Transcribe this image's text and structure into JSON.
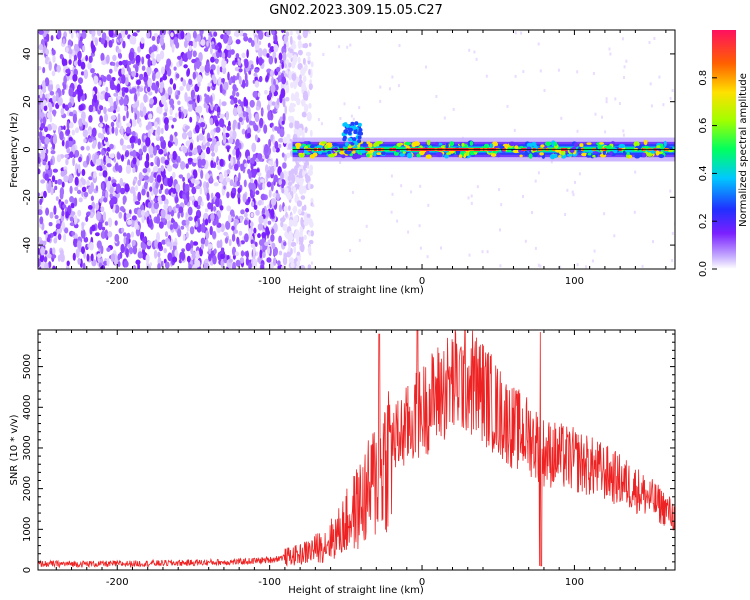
{
  "title": "GN02.2023.309.15.05.C27",
  "colors": {
    "snr_line": "#ee2222",
    "axis": "#000000"
  },
  "chart_data": [
    {
      "type": "heatmap",
      "xlabel": "Height of straight line (km)",
      "ylabel": "Frequency (Hz)",
      "xlim": [
        -252,
        166
      ],
      "ylim": [
        -50,
        50
      ],
      "xticks": [
        -200,
        -100,
        0,
        100
      ],
      "yticks": [
        -40,
        -20,
        0,
        20,
        40
      ],
      "colorbar": {
        "label": "Normalized spectral amplitude",
        "range": [
          0,
          1
        ],
        "ticks": [
          0.0,
          0.2,
          0.4,
          0.6,
          0.8
        ],
        "colormap": "rainbow (purple to red)"
      },
      "description_points": {
        "noise_region_x": [
          -252,
          -80
        ],
        "signal_line_x": [
          -85,
          166
        ],
        "signal_frequency": 0
      }
    },
    {
      "type": "line",
      "xlabel": "Height of straight line (km)",
      "ylabel": "SNR (10 * v/v)",
      "xlim": [
        -252,
        166
      ],
      "ylim": [
        0,
        5900
      ],
      "xticks": [
        -200,
        -100,
        0,
        100
      ],
      "yticks": [
        0,
        1000,
        2000,
        3000,
        4000,
        5000
      ],
      "series": [
        {
          "x": [
            -252,
            -200,
            -150,
            -120,
            -100,
            -80,
            -65,
            -55,
            -45,
            -35,
            -30,
            -25,
            -20,
            -10,
            -3,
            0,
            10,
            20,
            30,
            40,
            50,
            60,
            70,
            78,
            80,
            90,
            100,
            120,
            140,
            160,
            166
          ],
          "y": [
            150,
            150,
            180,
            200,
            250,
            380,
            600,
            900,
            1400,
            1900,
            2300,
            2700,
            3100,
            3500,
            3800,
            3900,
            4300,
            4600,
            4700,
            4400,
            3900,
            3500,
            3300,
            3000,
            2900,
            2800,
            2700,
            2400,
            2000,
            1500,
            1300
          ]
        }
      ],
      "spikes": [
        {
          "x": -28,
          "y": 5800
        },
        {
          "x": -3,
          "y": 5900
        },
        {
          "x": 78,
          "y": 5850
        }
      ]
    }
  ]
}
